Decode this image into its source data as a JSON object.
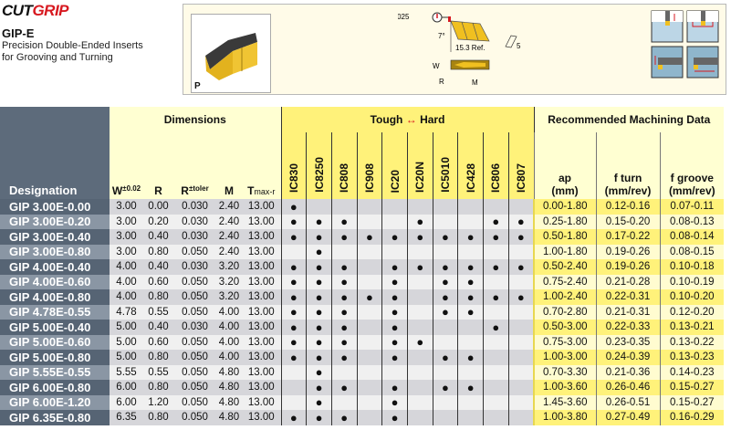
{
  "header": {
    "logo": "CUTGRIP",
    "logo_part1": "CUT",
    "logo_part2": "GRIP",
    "title": "GIP-E",
    "subtitle_line1": "Precision Double-Ended Inserts",
    "subtitle_line2": "for Grooving and Turning"
  },
  "info": {
    "material_code": "P",
    "tolerance": "±0.025",
    "angle": "7°",
    "length_ref": "15.3 Ref.",
    "dim_5": "5",
    "label_w": "W",
    "label_r": "R",
    "label_m": "M"
  },
  "colors": {
    "brand_red": "#d71920",
    "insert_gold": "#e8b820",
    "grade_yellow": "#fff27a",
    "designation_slate": "#566474"
  },
  "table": {
    "designation_header": "Designation",
    "dimensions_header": "Dimensions",
    "dim_cols": [
      {
        "main": "W",
        "sup": "±0.02"
      },
      {
        "main": "R",
        "sup": ""
      },
      {
        "main": "R",
        "sup": "±toler"
      },
      {
        "main": "M",
        "sup": ""
      },
      {
        "main": "T",
        "sub": "max-r"
      }
    ],
    "grades_header_left": "Tough",
    "grades_header_arrow": "↔",
    "grades_header_right": "Hard",
    "grades": [
      "IC830",
      "IC8250",
      "IC808",
      "IC908",
      "IC20",
      "IC20N",
      "IC5010",
      "IC428",
      "IC806",
      "IC807"
    ],
    "machining_header": "Recommended  Machining Data",
    "machining_cols": [
      {
        "l1": "ap",
        "l2": "(mm)"
      },
      {
        "l1": "f turn",
        "l2": "(mm/rev)"
      },
      {
        "l1": "f groove",
        "l2": "(mm/rev)"
      }
    ],
    "dot": "●",
    "rows": [
      {
        "des": "GIP 3.00E-0.00",
        "dims": [
          "3.00",
          "0.00",
          "0.030",
          "2.40",
          "13.00"
        ],
        "grades": [
          "IC830"
        ],
        "mach": [
          "0.00-1.80",
          "0.12-0.16",
          "0.07-0.11"
        ]
      },
      {
        "des": "GIP 3.00E-0.20",
        "dims": [
          "3.00",
          "0.20",
          "0.030",
          "2.40",
          "13.00"
        ],
        "grades": [
          "IC830",
          "IC8250",
          "IC808",
          "IC20N",
          "IC806",
          "IC807"
        ],
        "mach": [
          "0.25-1.80",
          "0.15-0.20",
          "0.08-0.13"
        ]
      },
      {
        "des": "GIP 3.00E-0.40",
        "dims": [
          "3.00",
          "0.40",
          "0.030",
          "2.40",
          "13.00"
        ],
        "grades": [
          "IC830",
          "IC8250",
          "IC808",
          "IC908",
          "IC20",
          "IC20N",
          "IC5010",
          "IC428",
          "IC806",
          "IC807"
        ],
        "mach": [
          "0.50-1.80",
          "0.17-0.22",
          "0.08-0.14"
        ]
      },
      {
        "des": "GIP 3.00E-0.80",
        "dims": [
          "3.00",
          "0.80",
          "0.050",
          "2.40",
          "13.00"
        ],
        "grades": [
          "IC8250"
        ],
        "mach": [
          "1.00-1.80",
          "0.19-0.26",
          "0.08-0.15"
        ]
      },
      {
        "des": "GIP 4.00E-0.40",
        "dims": [
          "4.00",
          "0.40",
          "0.030",
          "3.20",
          "13.00"
        ],
        "grades": [
          "IC830",
          "IC8250",
          "IC808",
          "IC20",
          "IC20N",
          "IC5010",
          "IC428",
          "IC806",
          "IC807"
        ],
        "mach": [
          "0.50-2.40",
          "0.19-0.26",
          "0.10-0.18"
        ]
      },
      {
        "des": "GIP 4.00E-0.60",
        "dims": [
          "4.00",
          "0.60",
          "0.050",
          "3.20",
          "13.00"
        ],
        "grades": [
          "IC830",
          "IC8250",
          "IC808",
          "IC20",
          "IC5010",
          "IC428"
        ],
        "mach": [
          "0.75-2.40",
          "0.21-0.28",
          "0.10-0.19"
        ]
      },
      {
        "des": "GIP 4.00E-0.80",
        "dims": [
          "4.00",
          "0.80",
          "0.050",
          "3.20",
          "13.00"
        ],
        "grades": [
          "IC830",
          "IC8250",
          "IC808",
          "IC908",
          "IC20",
          "IC5010",
          "IC428",
          "IC806",
          "IC807"
        ],
        "mach": [
          "1.00-2.40",
          "0.22-0.31",
          "0.10-0.20"
        ]
      },
      {
        "des": "GIP 4.78E-0.55",
        "dims": [
          "4.78",
          "0.55",
          "0.050",
          "4.00",
          "13.00"
        ],
        "grades": [
          "IC830",
          "IC8250",
          "IC808",
          "IC20",
          "IC5010",
          "IC428"
        ],
        "mach": [
          "0.70-2.80",
          "0.21-0.31",
          "0.12-0.20"
        ]
      },
      {
        "des": "GIP 5.00E-0.40",
        "dims": [
          "5.00",
          "0.40",
          "0.030",
          "4.00",
          "13.00"
        ],
        "grades": [
          "IC830",
          "IC8250",
          "IC808",
          "IC20",
          "IC806"
        ],
        "mach": [
          "0.50-3.00",
          "0.22-0.33",
          "0.13-0.21"
        ]
      },
      {
        "des": "GIP 5.00E-0.60",
        "dims": [
          "5.00",
          "0.60",
          "0.050",
          "4.00",
          "13.00"
        ],
        "grades": [
          "IC830",
          "IC8250",
          "IC808",
          "IC20",
          "IC20N"
        ],
        "mach": [
          "0.75-3.00",
          "0.23-0.35",
          "0.13-0.22"
        ]
      },
      {
        "des": "GIP 5.00E-0.80",
        "dims": [
          "5.00",
          "0.80",
          "0.050",
          "4.00",
          "13.00"
        ],
        "grades": [
          "IC830",
          "IC8250",
          "IC808",
          "IC20",
          "IC5010",
          "IC428"
        ],
        "mach": [
          "1.00-3.00",
          "0.24-0.39",
          "0.13-0.23"
        ]
      },
      {
        "des": "GIP 5.55E-0.55",
        "dims": [
          "5.55",
          "0.55",
          "0.050",
          "4.80",
          "13.00"
        ],
        "grades": [
          "IC8250"
        ],
        "mach": [
          "0.70-3.30",
          "0.21-0.36",
          "0.14-0.23"
        ]
      },
      {
        "des": "GIP 6.00E-0.80",
        "dims": [
          "6.00",
          "0.80",
          "0.050",
          "4.80",
          "13.00"
        ],
        "grades": [
          "IC8250",
          "IC808",
          "IC20",
          "IC5010",
          "IC428"
        ],
        "mach": [
          "1.00-3.60",
          "0.26-0.46",
          "0.15-0.27"
        ]
      },
      {
        "des": "GIP 6.00E-1.20",
        "dims": [
          "6.00",
          "1.20",
          "0.050",
          "4.80",
          "13.00"
        ],
        "grades": [
          "IC8250",
          "IC20"
        ],
        "mach": [
          "1.45-3.60",
          "0.26-0.51",
          "0.15-0.27"
        ]
      },
      {
        "des": "GIP 6.35E-0.80",
        "dims": [
          "6.35",
          "0.80",
          "0.050",
          "4.80",
          "13.00"
        ],
        "grades": [
          "IC830",
          "IC8250",
          "IC808",
          "IC20"
        ],
        "mach": [
          "1.00-3.80",
          "0.27-0.49",
          "0.16-0.29"
        ]
      }
    ]
  }
}
